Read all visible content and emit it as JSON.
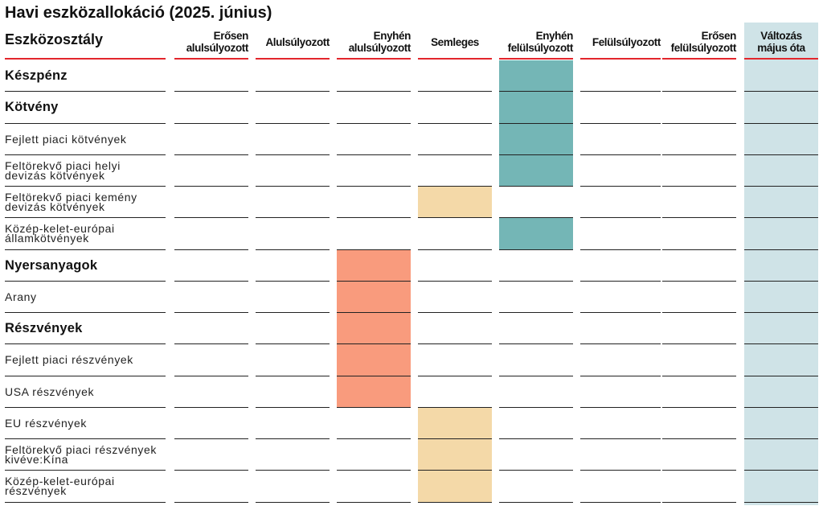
{
  "title": "Havi eszközallokáció (2025. június)",
  "header": {
    "first": "Eszközosztály",
    "columns": [
      [
        "Erősen",
        "alulsúlyozott"
      ],
      [
        "Alulsúlyozott"
      ],
      [
        "Enyhén",
        "alulsúlyozott"
      ],
      [
        "Semleges"
      ],
      [
        "Enyhén",
        "felülsúlyozott"
      ],
      [
        "Felülsúlyozott"
      ],
      [
        "Erősen",
        "felülsúlyozott"
      ],
      [
        "Változás",
        "május óta"
      ]
    ]
  },
  "colors": {
    "slightly_underweight": "#f99b7d",
    "neutral": "#f4d9a8",
    "slightly_overweight": "#74b6b6",
    "change_column": "#cfe3e7",
    "header_rule": "#e3262c"
  },
  "rows": [
    {
      "label": "Készpénz",
      "bold": true,
      "position": "Enyhén felülsúlyozott"
    },
    {
      "label": "Kötvény",
      "bold": true,
      "position": "Enyhén felülsúlyozott"
    },
    {
      "label": "Fejlett piaci kötvények",
      "bold": false,
      "position": "Enyhén felülsúlyozott"
    },
    {
      "label": "Feltörekvő piaci helyi devizás kötvények",
      "bold": false,
      "position": "Enyhén felülsúlyozott"
    },
    {
      "label": "Feltörekvő piaci kemény devizás kötvények",
      "bold": false,
      "position": "Semleges"
    },
    {
      "label": "Közép-kelet-európai államkötvények",
      "bold": false,
      "position": "Enyhén felülsúlyozott"
    },
    {
      "label": "Nyersanyagok",
      "bold": true,
      "position": "Enyhén alulsúlyozott"
    },
    {
      "label": "Arany",
      "bold": false,
      "position": "Enyhén alulsúlyozott"
    },
    {
      "label": "Részvények",
      "bold": true,
      "position": "Enyhén alulsúlyozott"
    },
    {
      "label": "Fejlett piaci részvények",
      "bold": false,
      "position": "Enyhén alulsúlyozott"
    },
    {
      "label": "USA részvények",
      "bold": false,
      "position": "Enyhén alulsúlyozott"
    },
    {
      "label": "EU részvények",
      "bold": false,
      "position": "Semleges"
    },
    {
      "label": "Feltörekvő piaci részvények kivéve:Kína",
      "bold": false,
      "position": "Semleges"
    },
    {
      "label": "Közép-kelet-európai részvények",
      "bold": false,
      "position": "Semleges"
    }
  ]
}
